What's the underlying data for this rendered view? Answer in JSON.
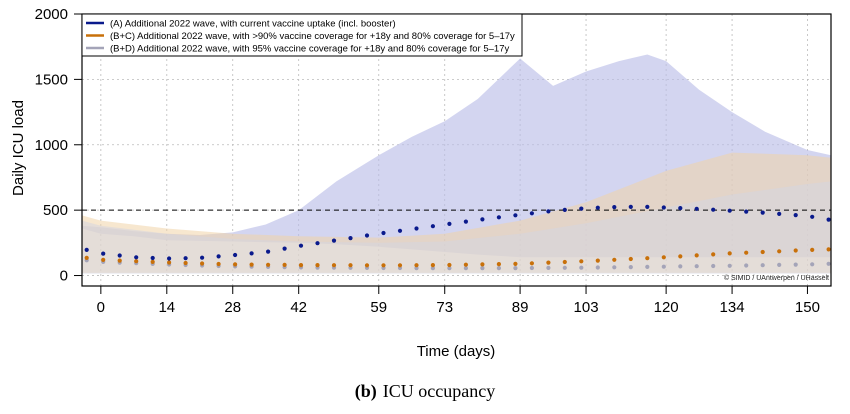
{
  "chart_data": {
    "type": "line",
    "title": "",
    "xlabel": "Time (days)",
    "ylabel": "Daily ICU load",
    "xlim": [
      -4,
      155
    ],
    "ylim": [
      -80,
      2000
    ],
    "x_ticks": [
      0,
      14,
      28,
      42,
      59,
      73,
      89,
      103,
      120,
      134,
      150
    ],
    "y_ticks": [
      0,
      500,
      1000,
      1500,
      2000
    ],
    "grid": true,
    "legend_position": "top-left",
    "reference_line": {
      "y": 500,
      "style": "dashed"
    },
    "series": [
      {
        "name": "(A) Additional 2022 wave, with current vaccine uptake (incl. booster)",
        "color": "#0a1a8c",
        "band_color": "#b8bce6",
        "x": [
          -4,
          0,
          7,
          14,
          21,
          28,
          35,
          42,
          50,
          59,
          66,
          73,
          80,
          89,
          96,
          103,
          110,
          116,
          120,
          127,
          134,
          141,
          150,
          155
        ],
        "y": [
          205,
          170,
          140,
          130,
          135,
          155,
          180,
          225,
          270,
          320,
          355,
          390,
          425,
          465,
          495,
          515,
          525,
          525,
          520,
          510,
          495,
          480,
          455,
          425
        ],
        "lower": [
          360,
          320,
          300,
          270,
          265,
          260,
          255,
          250,
          240,
          220,
          200,
          180,
          160,
          140,
          140,
          140,
          140,
          140,
          140,
          140,
          140,
          140,
          140,
          140
        ],
        "upper": [
          380,
          370,
          340,
          320,
          310,
          330,
          390,
          500,
          720,
          920,
          1060,
          1180,
          1350,
          1660,
          1450,
          1560,
          1640,
          1690,
          1640,
          1420,
          1250,
          1100,
          960,
          920
        ]
      },
      {
        "name": "(B+C) Additional 2022 wave, with >90% vaccine coverage for +18y and 80% coverage for 5–17y",
        "color": "#c8700a",
        "band_color": "#f1d3a8",
        "x": [
          -4,
          0,
          14,
          28,
          42,
          59,
          73,
          89,
          103,
          120,
          134,
          150,
          155
        ],
        "y": [
          140,
          120,
          100,
          85,
          80,
          78,
          80,
          90,
          110,
          140,
          170,
          195,
          200
        ],
        "lower": [
          20,
          20,
          20,
          20,
          20,
          20,
          20,
          20,
          20,
          20,
          20,
          20,
          20
        ],
        "upper": [
          460,
          420,
          360,
          320,
          300,
          290,
          320,
          420,
          560,
          800,
          940,
          920,
          900
        ]
      },
      {
        "name": "(B+D) Additional 2022 wave, with 95% vaccine coverage for +18y and 80% coverage for 5–17y",
        "color": "#a4a4b8",
        "band_color": "#d6d6e0",
        "x": [
          -4,
          0,
          14,
          28,
          42,
          59,
          73,
          89,
          103,
          120,
          134,
          150,
          155
        ],
        "y": [
          120,
          105,
          85,
          70,
          62,
          58,
          56,
          57,
          60,
          68,
          75,
          85,
          90
        ],
        "lower": [
          15,
          15,
          15,
          15,
          15,
          15,
          15,
          15,
          15,
          15,
          15,
          15,
          15
        ],
        "upper": [
          420,
          380,
          320,
          280,
          260,
          250,
          260,
          320,
          400,
          520,
          620,
          700,
          720
        ]
      }
    ],
    "annotation": "© SIMID / UAntwerpen / UHasselt"
  },
  "caption": {
    "label": "(b)",
    "text": "ICU occupancy"
  }
}
